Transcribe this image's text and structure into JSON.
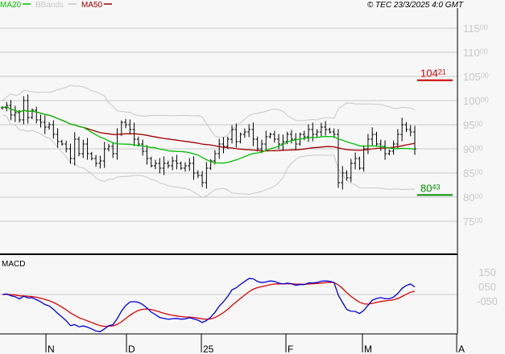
{
  "chart_data": {
    "type": "ohlc",
    "title": "",
    "copyright": "© TEC 23/3/2025 4:0 GMT",
    "legend": [
      {
        "name": "MA20",
        "color": "#00c000"
      },
      {
        "name": "BBands",
        "color": "#c8c8c8"
      },
      {
        "name": "MA50",
        "color": "#a00000"
      }
    ],
    "ylim": [
      7000,
      12000
    ],
    "yticks": [
      {
        "v": 11500,
        "i": "115",
        "d": "00"
      },
      {
        "v": 11000,
        "i": "110",
        "d": "00"
      },
      {
        "v": 10500,
        "i": "105",
        "d": "00"
      },
      {
        "v": 10000,
        "i": "100",
        "d": "00"
      },
      {
        "v": 9500,
        "i": "95",
        "d": "00"
      },
      {
        "v": 9000,
        "i": "90",
        "d": "00"
      },
      {
        "v": 8500,
        "i": "85",
        "d": "00"
      },
      {
        "v": 8000,
        "i": "80",
        "d": "00"
      },
      {
        "v": 7500,
        "i": "75",
        "d": "00"
      }
    ],
    "resistance": {
      "value": 10421,
      "i": "104",
      "d": "21",
      "color": "#cc0000"
    },
    "support": {
      "value": 8043,
      "i": "80",
      "d": "43",
      "color": "#009000"
    },
    "xticks": [
      "N",
      "D",
      "25",
      "F",
      "M",
      "A"
    ],
    "closes": [
      9850,
      9900,
      9700,
      9750,
      9600,
      10000,
      9650,
      9800,
      9600,
      9550,
      9450,
      9500,
      9300,
      9150,
      9100,
      9000,
      8800,
      9200,
      8900,
      9100,
      8900,
      8800,
      8700,
      8750,
      9000,
      9050,
      8900,
      9300,
      9550,
      9500,
      9400,
      9200,
      9100,
      8950,
      8800,
      8650,
      8700,
      8600,
      8700,
      8650,
      8750,
      8700,
      8600,
      8650,
      8700,
      8500,
      8450,
      8300,
      8600,
      8750,
      8900,
      9100,
      9050,
      9200,
      9400,
      9150,
      9300,
      9350,
      9400,
      9200,
      9000,
      9100,
      9250,
      9300,
      9200,
      9100,
      9150,
      9300,
      9200,
      9100,
      9300,
      9250,
      9400,
      9300,
      9350,
      9450,
      9400,
      9350,
      9300,
      8300,
      8500,
      8400,
      8700,
      8800,
      8600,
      9000,
      9200,
      9300,
      9100,
      9050,
      8900,
      8950,
      9100,
      9300,
      9500,
      9400,
      9350,
      9000
    ],
    "macd": {
      "label": "MACD",
      "yticks": [
        {
          "v": 1.5,
          "t": "150"
        },
        {
          "v": 0.5,
          "t": "050"
        },
        {
          "v": -0.5,
          "t": "-050"
        }
      ],
      "line_color": "#0000dd",
      "signal_color": "#dd0000"
    }
  }
}
